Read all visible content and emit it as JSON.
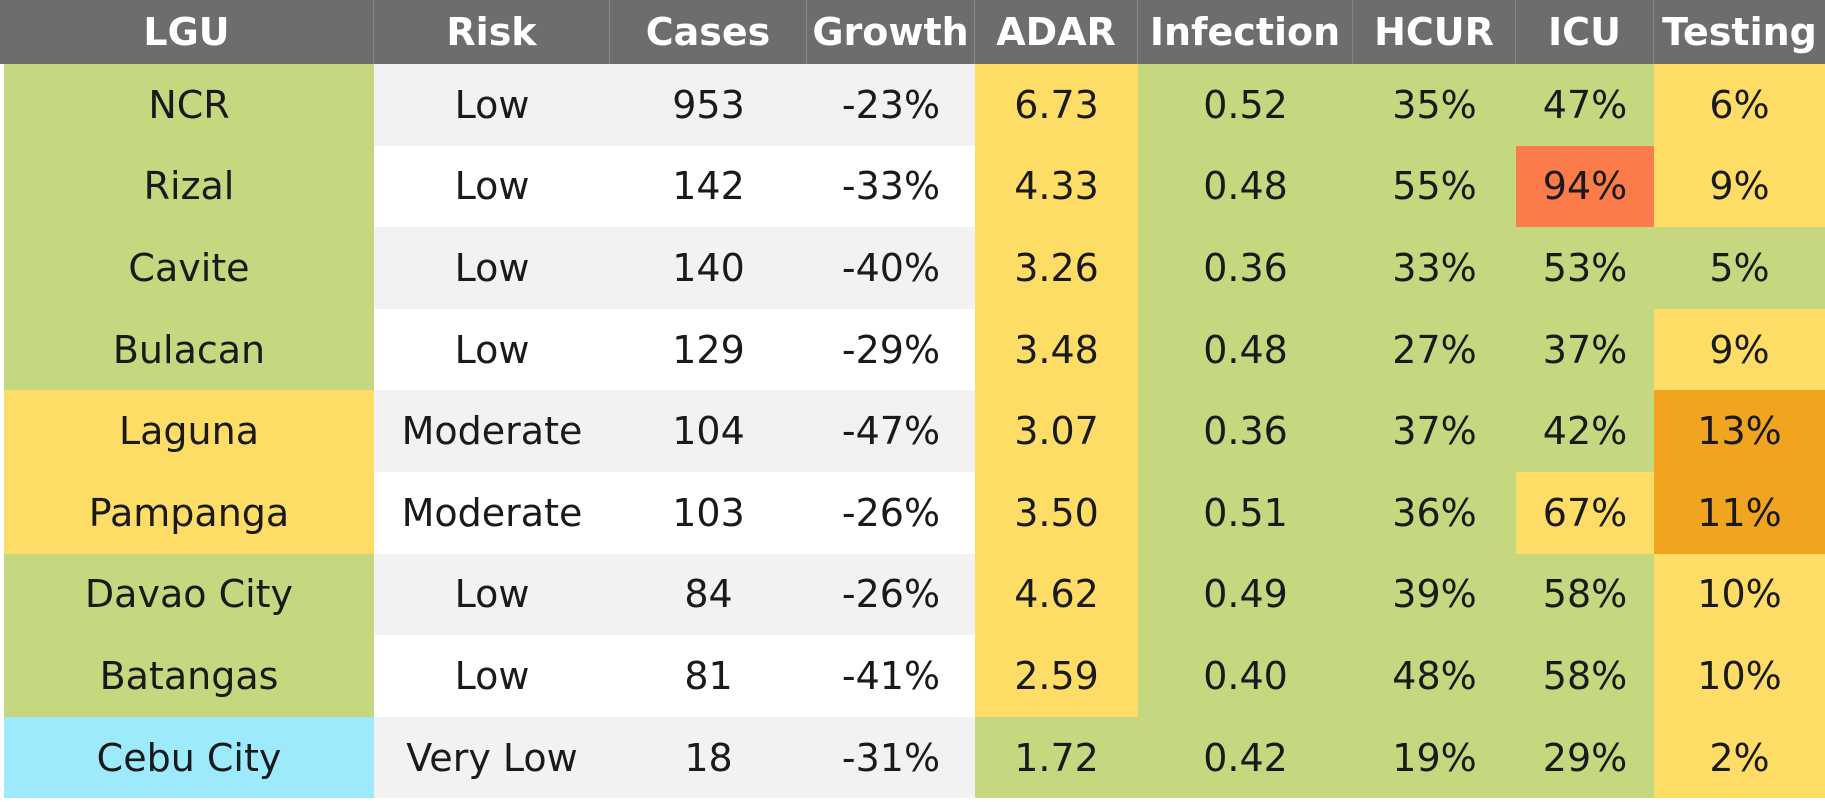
{
  "colors": {
    "header_bg": "#6d6d6d",
    "green": "#c5d77f",
    "yellow": "#fedd67",
    "orange": "#f0a41f",
    "red": "#fb7b4a",
    "cyan": "#9deafd",
    "gray_row": "#f2f2f2",
    "white_row": "#ffffff"
  },
  "chart_data": {
    "type": "table",
    "columns": [
      "LGU",
      "Risk",
      "Cases",
      "Growth",
      "ADAR",
      "Infection",
      "HCUR",
      "ICU",
      "Testing"
    ],
    "rows": [
      [
        "NCR",
        "Low",
        "953",
        "-23%",
        "6.73",
        "0.52",
        "35%",
        "47%",
        "6%"
      ],
      [
        "Rizal",
        "Low",
        "142",
        "-33%",
        "4.33",
        "0.48",
        "55%",
        "94%",
        "9%"
      ],
      [
        "Cavite",
        "Low",
        "140",
        "-40%",
        "3.26",
        "0.36",
        "33%",
        "53%",
        "5%"
      ],
      [
        "Bulacan",
        "Low",
        "129",
        "-29%",
        "3.48",
        "0.48",
        "27%",
        "37%",
        "9%"
      ],
      [
        "Laguna",
        "Moderate",
        "104",
        "-47%",
        "3.07",
        "0.36",
        "37%",
        "42%",
        "13%"
      ],
      [
        "Pampanga",
        "Moderate",
        "103",
        "-26%",
        "3.50",
        "0.51",
        "36%",
        "67%",
        "11%"
      ],
      [
        "Davao City",
        "Low",
        "84",
        "-26%",
        "4.62",
        "0.49",
        "39%",
        "58%",
        "10%"
      ],
      [
        "Batangas",
        "Low",
        "81",
        "-41%",
        "2.59",
        "0.40",
        "48%",
        "58%",
        "10%"
      ],
      [
        "Cebu City",
        "Very Low",
        "18",
        "-31%",
        "1.72",
        "0.42",
        "19%",
        "29%",
        "2%"
      ]
    ],
    "cell_colors": [
      [
        "green",
        "gray_row",
        "gray_row",
        "gray_row",
        "yellow",
        "green",
        "green",
        "green",
        "yellow"
      ],
      [
        "green",
        "white_row",
        "white_row",
        "white_row",
        "yellow",
        "green",
        "green",
        "red",
        "yellow"
      ],
      [
        "green",
        "gray_row",
        "gray_row",
        "gray_row",
        "yellow",
        "green",
        "green",
        "green",
        "green"
      ],
      [
        "green",
        "white_row",
        "white_row",
        "white_row",
        "yellow",
        "green",
        "green",
        "green",
        "yellow"
      ],
      [
        "yellow",
        "gray_row",
        "gray_row",
        "gray_row",
        "yellow",
        "green",
        "green",
        "green",
        "orange"
      ],
      [
        "yellow",
        "white_row",
        "white_row",
        "white_row",
        "yellow",
        "green",
        "green",
        "yellow",
        "orange"
      ],
      [
        "green",
        "gray_row",
        "gray_row",
        "gray_row",
        "yellow",
        "green",
        "green",
        "green",
        "yellow"
      ],
      [
        "green",
        "white_row",
        "white_row",
        "white_row",
        "yellow",
        "green",
        "green",
        "green",
        "yellow"
      ],
      [
        "cyan",
        "gray_row",
        "gray_row",
        "gray_row",
        "green",
        "green",
        "green",
        "green",
        "yellow"
      ]
    ]
  }
}
